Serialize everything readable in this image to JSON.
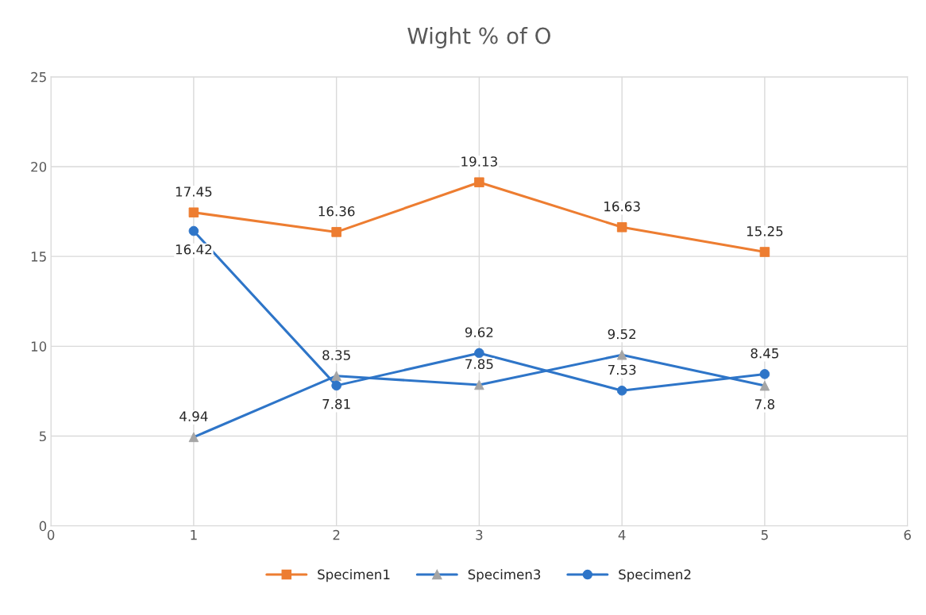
{
  "chart_data": {
    "type": "line",
    "title": "Wight % of O",
    "x": [
      1,
      2,
      3,
      4,
      5
    ],
    "series": [
      {
        "name": "Specimen1",
        "color": "#ed7d31",
        "marker": "square",
        "values": [
          17.45,
          16.36,
          19.13,
          16.63,
          15.25
        ]
      },
      {
        "name": "Specimen3",
        "color": "#2e75c8",
        "colors": [
          "#a5a5a5",
          "#a5a5a5",
          "#a5a5a5",
          "#a5a5a5",
          "#a5a5a5"
        ],
        "marker": "triangle",
        "values": [
          4.94,
          8.35,
          7.85,
          9.52,
          7.8
        ]
      },
      {
        "name": "Specimen2",
        "color": "#2e75c8",
        "marker": "circle",
        "values": [
          16.42,
          7.81,
          9.62,
          7.53,
          8.45
        ]
      }
    ],
    "xlim": [
      0,
      6
    ],
    "xticks": [
      0,
      1,
      2,
      3,
      4,
      5,
      6
    ],
    "ylim": [
      0,
      25
    ],
    "yticks": [
      0,
      5,
      10,
      15,
      20,
      25
    ],
    "grid": true,
    "legend": "bottom",
    "data_labels": true
  }
}
